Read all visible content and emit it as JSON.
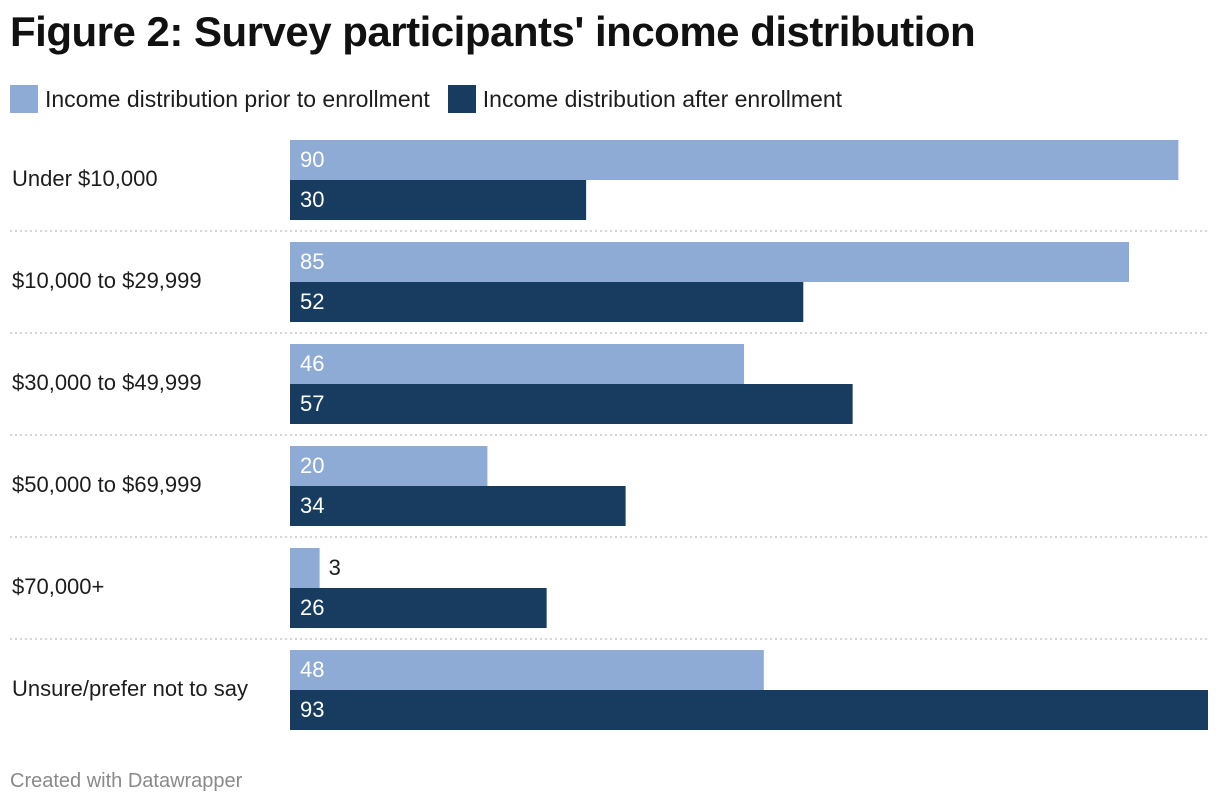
{
  "chart_data": {
    "type": "bar",
    "orientation": "horizontal",
    "title": "Figure 2: Survey participants' income distribution",
    "categories": [
      "Under $10,000",
      "$10,000 to $29,999",
      "$30,000 to $49,999",
      "$50,000 to $69,999",
      "$70,000+",
      "Unsure/prefer not to say"
    ],
    "series": [
      {
        "name": "Income distribution prior to enrollment",
        "color": "#8eabd6",
        "values": [
          90,
          85,
          46,
          20,
          3,
          48
        ]
      },
      {
        "name": "Income distribution after enrollment",
        "color": "#173c60",
        "values": [
          30,
          52,
          57,
          34,
          26,
          93
        ]
      }
    ],
    "xlim": [
      0,
      93
    ],
    "legend_position": "top-left",
    "grid": false,
    "data_labels": true
  },
  "footer": {
    "credit": "Created with Datawrapper"
  }
}
